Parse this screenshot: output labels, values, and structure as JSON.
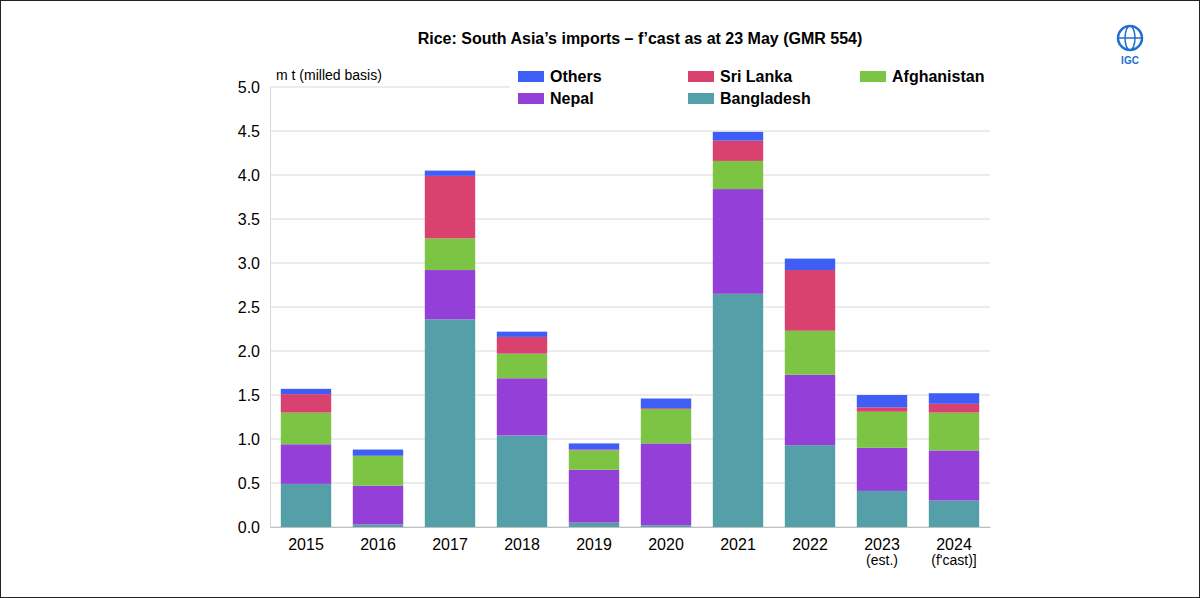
{
  "chart_data": {
    "type": "bar",
    "stacked": true,
    "title": "Rice: South Asia’s imports – f’cast as at 23 May (GMR 554)",
    "y_label": "m t (milled basis)",
    "logo": "IGC",
    "grid": true,
    "legend": "top",
    "categories": [
      "2015",
      "2016",
      "2017",
      "2018",
      "2019",
      "2020",
      "2021",
      "2022",
      "2023\n(est.)",
      "2024\n(f'cast)]"
    ],
    "ylim": [
      0,
      5
    ],
    "yticks": [
      {
        "value": 0,
        "label": "0.0"
      },
      {
        "value": 0.5,
        "label": "0.5"
      },
      {
        "value": 1,
        "label": "1.0"
      },
      {
        "value": 1.5,
        "label": "1.5"
      },
      {
        "value": 2,
        "label": "2.0"
      },
      {
        "value": 2.5,
        "label": "2.5"
      },
      {
        "value": 3,
        "label": "3.0"
      },
      {
        "value": 3.5,
        "label": "3.5"
      },
      {
        "value": 4,
        "label": "4.0"
      },
      {
        "value": 4.5,
        "label": "4.5"
      },
      {
        "value": 5,
        "label": "5.0"
      }
    ],
    "series": [
      {
        "name": "Bangladesh",
        "color": "#55a0a8",
        "values": [
          0.49,
          0.03,
          2.36,
          1.04,
          0.05,
          0.02,
          2.65,
          0.93,
          0.41,
          0.3
        ]
      },
      {
        "name": "Nepal",
        "color": "#9440d8",
        "values": [
          0.45,
          0.44,
          0.56,
          0.65,
          0.6,
          0.93,
          1.19,
          0.8,
          0.49,
          0.57
        ]
      },
      {
        "name": "Afghanistan",
        "color": "#7cc444",
        "values": [
          0.36,
          0.34,
          0.36,
          0.28,
          0.22,
          0.39,
          0.32,
          0.5,
          0.41,
          0.43
        ]
      },
      {
        "name": "Sri Lanka",
        "color": "#d9416e",
        "values": [
          0.21,
          0.0,
          0.71,
          0.19,
          0.01,
          0.01,
          0.23,
          0.69,
          0.05,
          0.1
        ]
      },
      {
        "name": "Others",
        "color": "#3f5ef5",
        "values": [
          0.06,
          0.07,
          0.06,
          0.06,
          0.07,
          0.11,
          0.1,
          0.13,
          0.14,
          0.12
        ]
      }
    ]
  }
}
